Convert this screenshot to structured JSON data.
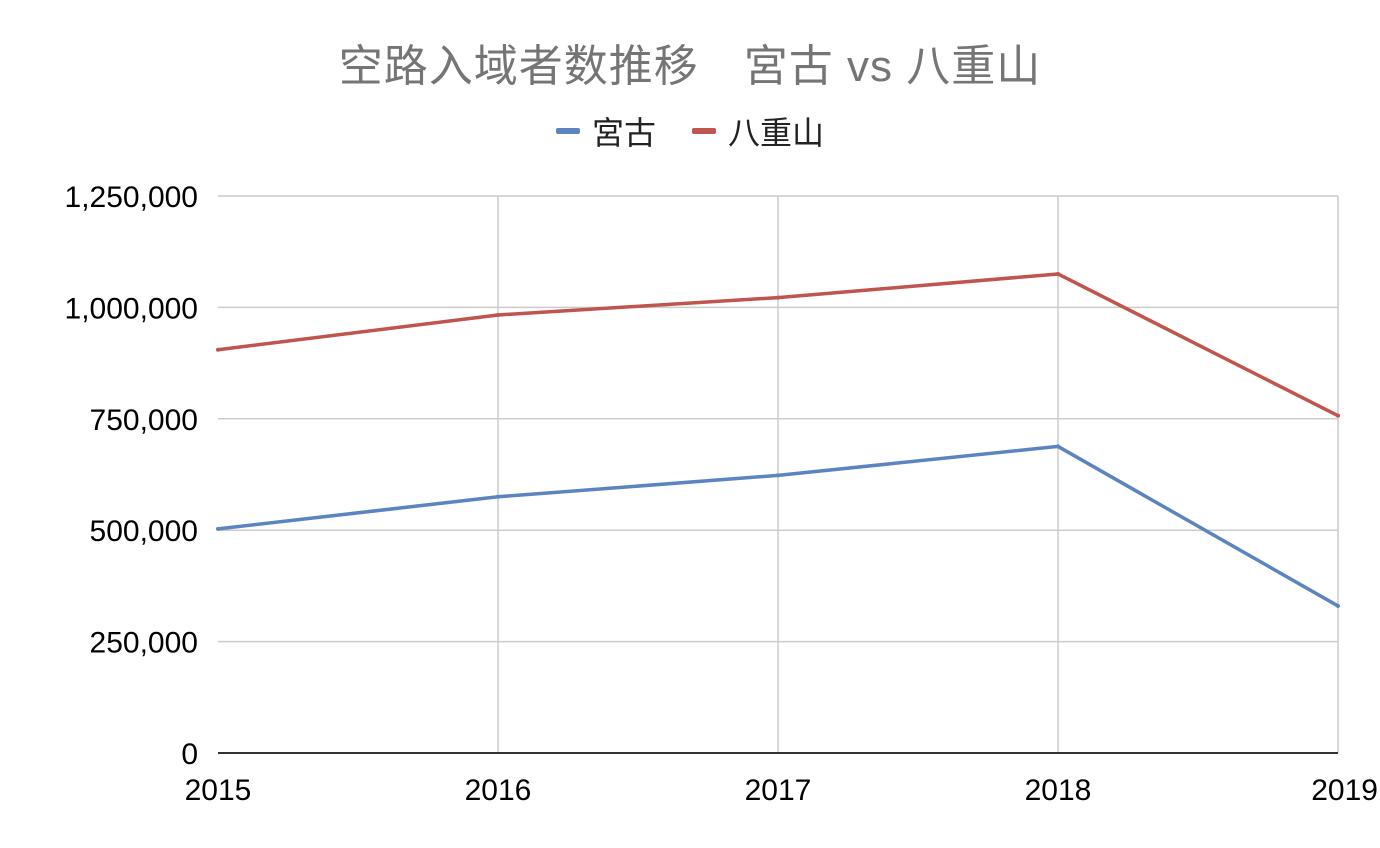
{
  "chart_data": {
    "type": "line",
    "title": "空路入域者数推移　宮古 vs 八重山",
    "xlabel": "",
    "ylabel": "",
    "categories": [
      "2015",
      "2016",
      "2017",
      "2018",
      "2019"
    ],
    "series": [
      {
        "name": "宮古",
        "color": "#5b84c0",
        "values": [
          503000,
          575000,
          623000,
          688000,
          330000
        ]
      },
      {
        "name": "八重山",
        "color": "#c0544e",
        "values": [
          905000,
          983000,
          1022000,
          1075000,
          757000
        ]
      }
    ],
    "ylim": [
      0,
      1250000
    ],
    "yticks": [
      "0",
      "250,000",
      "500,000",
      "750,000",
      "1,000,000",
      "1,250,000"
    ],
    "grid": true,
    "legend_position": "top-center"
  }
}
